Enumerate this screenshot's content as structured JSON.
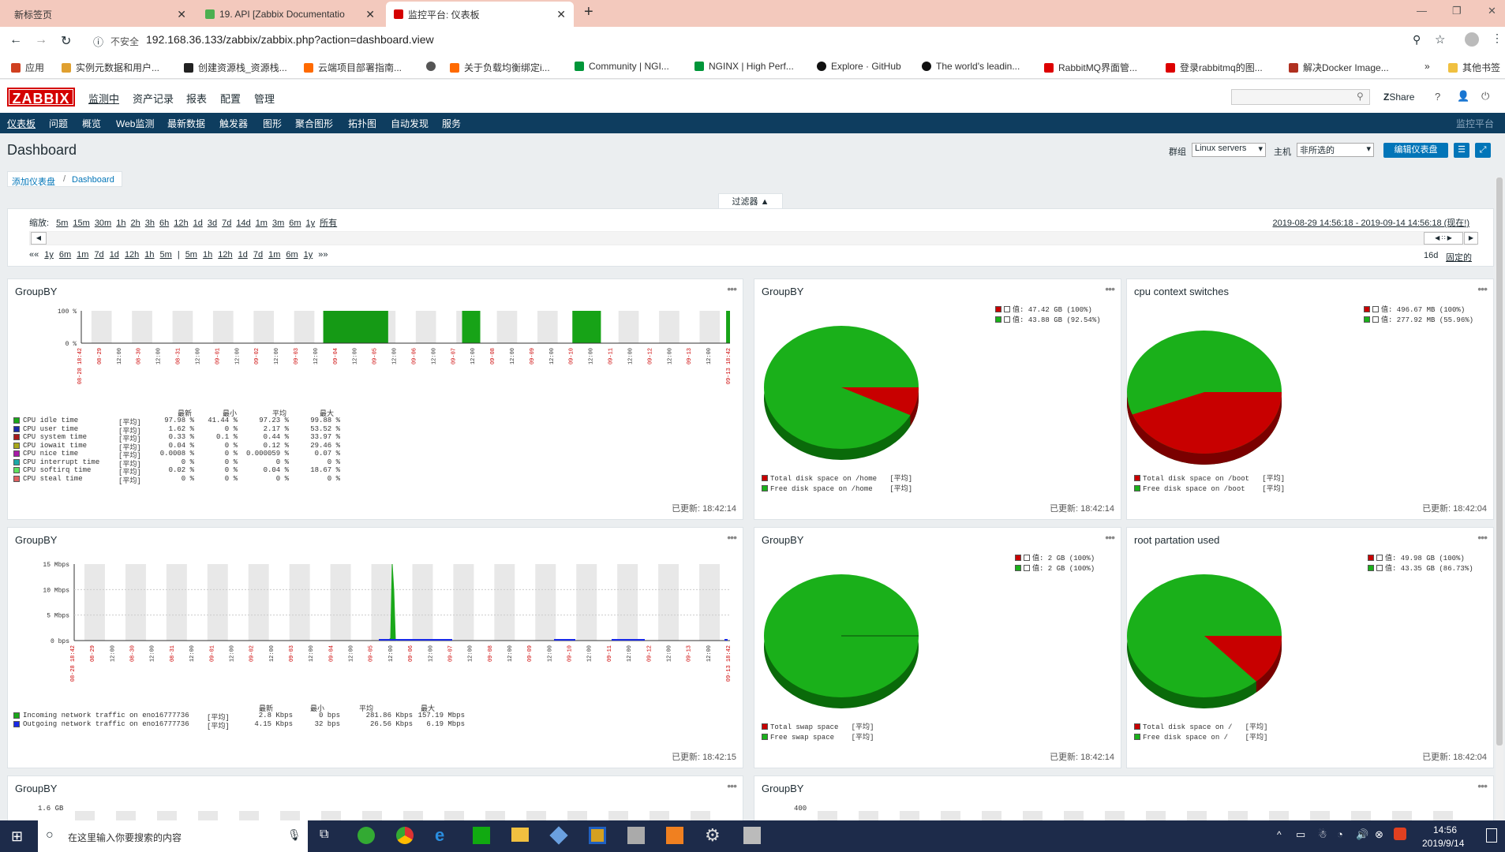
{
  "browser": {
    "tabs": [
      {
        "title": "新标签页"
      },
      {
        "title": "19. API [Zabbix Documentatio"
      },
      {
        "title": "监控平台: 仪表板"
      }
    ],
    "security": "不安全",
    "url": "192.168.36.133/zabbix/zabbix.php?action=dashboard.view",
    "bookmarks": [
      "应用",
      "实例元数据和用户...",
      "创建资源栈_资源栈...",
      "云端项目部署指南...",
      "关于负载均衡绑定i...",
      "Community | NGI...",
      "NGINX | High Perf...",
      "Explore · GitHub",
      "The world's leadin...",
      "RabbitMQ界面管...",
      "登录rabbitmq的图...",
      "解决Docker Image...",
      "»",
      "其他书签"
    ]
  },
  "zabbix": {
    "logo": "ZABBIX",
    "main_menu": [
      "监测中",
      "资产记录",
      "报表",
      "配置",
      "管理"
    ],
    "share": "Share",
    "sub_menu": [
      "仪表板",
      "问题",
      "概览",
      "Web监测",
      "最新数据",
      "触发器",
      "图形",
      "聚合图形",
      "拓扑图",
      "自动发现",
      "服务"
    ],
    "sub_menu_right": "监控平台"
  },
  "dashboard": {
    "title": "Dashboard",
    "group_label": "群组",
    "group_value": "Linux servers",
    "host_label": "主机",
    "host_value": "非所选的",
    "edit_button": "编辑仪表盘",
    "breadcrumb": [
      "添加仪表盘",
      "Dashboard"
    ],
    "filter_tab": "过滤器 ▲",
    "zoom_label": "缩放:",
    "zoom_options": [
      "5m",
      "15m",
      "30m",
      "1h",
      "2h",
      "3h",
      "6h",
      "12h",
      "1d",
      "3d",
      "7d",
      "14d",
      "1m",
      "3m",
      "6m",
      "1y",
      "所有"
    ],
    "time_range": "2019-08-29 14:56:18 - 2019-09-14 14:56:18 (现在!)",
    "nav_back": [
      "««",
      "1y",
      "6m",
      "1m",
      "7d",
      "1d",
      "12h",
      "1h",
      "5m",
      "|",
      "5m",
      "1h",
      "12h",
      "1d",
      "7d",
      "1m",
      "6m",
      "1y",
      "»»"
    ],
    "period": "16d",
    "fixed": "固定的"
  },
  "widgets": {
    "w1": {
      "title": "GroupBY",
      "updated": "已更新: 18:42:14",
      "y_top": "100 %",
      "y_bottom": "0 %",
      "xlabels": [
        "08-28 18:42",
        "08-29",
        "12:00",
        "08-30",
        "12:00",
        "08-31",
        "12:00",
        "09-01",
        "12:00",
        "09-02",
        "12:00",
        "09-03",
        "12:00",
        "09-04",
        "12:00",
        "09-05",
        "12:00",
        "09-06",
        "12:00",
        "09-07",
        "12:00",
        "09-08",
        "12:00",
        "09-09",
        "12:00",
        "09-10",
        "12:00",
        "09-11",
        "12:00",
        "09-12",
        "12:00",
        "09-13",
        "12:00",
        "09-13 18:42"
      ],
      "headers": [
        "最新",
        "最小",
        "平均",
        "最大"
      ],
      "rows": [
        {
          "color": "#1aa81a",
          "name": "CPU idle time",
          "fn": "[平均]",
          "v": [
            "97.98 %",
            "41.44 %",
            "97.23 %",
            "99.88 %"
          ]
        },
        {
          "color": "#1a2aa8",
          "name": "CPU user time",
          "fn": "[平均]",
          "v": [
            "1.62 %",
            "0 %",
            "2.17 %",
            "53.52 %"
          ]
        },
        {
          "color": "#a81a1a",
          "name": "CPU system time",
          "fn": "[平均]",
          "v": [
            "0.33 %",
            "0.1 %",
            "0.44 %",
            "33.97 %"
          ]
        },
        {
          "color": "#a8a81a",
          "name": "CPU iowait time",
          "fn": "[平均]",
          "v": [
            "0.04 %",
            "0 %",
            "0.12 %",
            "29.46 %"
          ]
        },
        {
          "color": "#a81aa8",
          "name": "CPU nice time",
          "fn": "[平均]",
          "v": [
            "0.0008 %",
            "0 %",
            "0.000059 %",
            "0.07 %"
          ]
        },
        {
          "color": "#1aa8a8",
          "name": "CPU interrupt time",
          "fn": "[平均]",
          "v": [
            "0 %",
            "0 %",
            "0 %",
            "0 %"
          ]
        },
        {
          "color": "#5ee05e",
          "name": "CPU softirq time",
          "fn": "[平均]",
          "v": [
            "0.02 %",
            "0 %",
            "0.04 %",
            "18.67 %"
          ]
        },
        {
          "color": "#e06060",
          "name": "CPU steal time",
          "fn": "[平均]",
          "v": [
            "0 %",
            "0 %",
            "0 %",
            "0 %"
          ]
        }
      ]
    },
    "w2": {
      "title": "GroupBY",
      "updated": "已更新: 18:42:14",
      "legend_top": [
        "值: 47.42 GB (100%)",
        "值: 43.88 GB (92.54%)"
      ],
      "legend_bottom": [
        "Total disk space on /home   [平均]",
        "Free disk space on /home    [平均]"
      ]
    },
    "w3": {
      "title": "cpu context switches",
      "updated": "已更新: 18:42:04",
      "legend_top": [
        "值: 496.67 MB (100%)",
        "值: 277.92 MB (55.96%)"
      ],
      "legend_bottom": [
        "Total disk space on /boot   [平均]",
        "Free disk space on /boot    [平均]"
      ]
    },
    "w4": {
      "title": "GroupBY",
      "updated": "已更新: 18:42:15",
      "yticks": [
        "15 Mbps",
        "10 Mbps",
        "5 Mbps",
        "0 bps"
      ],
      "headers": [
        "最新",
        "最小",
        "平均",
        "最大"
      ],
      "rows": [
        {
          "color": "#1aa81a",
          "name": "Incoming network traffic on eno16777736",
          "fn": "[平均]",
          "v": [
            "2.8 Kbps",
            "0 bps",
            "281.86 Kbps",
            "157.19 Mbps"
          ]
        },
        {
          "color": "#1a2ae8",
          "name": "Outgoing network traffic on eno16777736",
          "fn": "[平均]",
          "v": [
            "4.15 Kbps",
            "32 bps",
            "26.56 Kbps",
            "6.19 Mbps"
          ]
        }
      ]
    },
    "w5": {
      "title": "GroupBY",
      "updated": "已更新: 18:42:14",
      "legend_top": [
        "值: 2 GB (100%)",
        "值: 2 GB (100%)"
      ],
      "legend_bottom": [
        "Total swap space   [平均]",
        "Free swap space    [平均]"
      ]
    },
    "w6": {
      "title": "root partation used",
      "updated": "已更新: 18:42:04",
      "legend_top": [
        "值: 49.98 GB (100%)",
        "值: 43.35 GB (86.73%)"
      ],
      "legend_bottom": [
        "Total disk space on /   [平均]",
        "Free disk space on /    [平均]"
      ]
    },
    "w7": {
      "title": "GroupBY",
      "ytop": "1.6 GB"
    },
    "w8": {
      "title": "GroupBY",
      "ytop": "400"
    }
  },
  "chart_data": [
    {
      "type": "pie",
      "title": "GroupBY",
      "series": [
        {
          "name": "Total disk space on /home",
          "values": [
            47.42
          ]
        },
        {
          "name": "Free disk space on /home",
          "values": [
            43.88
          ]
        }
      ],
      "unit": "GB",
      "free_pct": 92.54,
      "colors": [
        "#c80000",
        "#1ab01a"
      ]
    },
    {
      "type": "pie",
      "title": "cpu context switches",
      "series": [
        {
          "name": "Total disk space on /boot",
          "values": [
            496.67
          ]
        },
        {
          "name": "Free disk space on /boot",
          "values": [
            277.92
          ]
        }
      ],
      "unit": "MB",
      "free_pct": 55.96,
      "colors": [
        "#c80000",
        "#1ab01a"
      ]
    },
    {
      "type": "pie",
      "title": "GroupBY",
      "series": [
        {
          "name": "Total swap space",
          "values": [
            2
          ]
        },
        {
          "name": "Free swap space",
          "values": [
            2
          ]
        }
      ],
      "unit": "GB",
      "free_pct": 100,
      "colors": [
        "#c80000",
        "#1ab01a"
      ]
    },
    {
      "type": "pie",
      "title": "root partation used",
      "series": [
        {
          "name": "Total disk space on /",
          "values": [
            49.98
          ]
        },
        {
          "name": "Free disk space on /",
          "values": [
            43.35
          ]
        }
      ],
      "unit": "GB",
      "free_pct": 86.73,
      "colors": [
        "#c80000",
        "#1ab01a"
      ]
    }
  ],
  "taskbar": {
    "search_placeholder": "在这里输入你要搜索的内容",
    "time": "14:56",
    "date": "2019/9/14"
  },
  "colors": {
    "accent": "#0275b8",
    "nav": "#0e3d5f",
    "logo": "#d40000",
    "green": "#1ab01a",
    "red": "#c80000"
  }
}
